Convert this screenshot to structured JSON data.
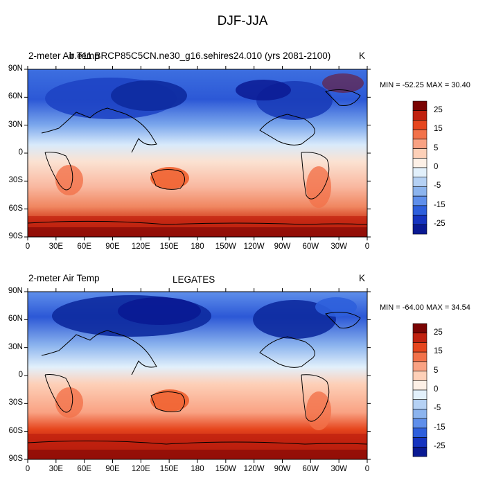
{
  "title": "DJF-JJA",
  "panels": [
    {
      "left_label": "2-meter Air Temp",
      "center_label": "b.e11.BRCP85C5CN.ne30_g16.sehires24.010 (yrs 2081-2100)",
      "unit": "K",
      "minmax": "MIN = -52.25 MAX =  30.40"
    },
    {
      "left_label": "2-meter Air Temp",
      "center_label": "LEGATES",
      "unit": "K",
      "minmax": "MIN = -64.00 MAX =  34.54"
    }
  ],
  "lat_ticks": [
    "90N",
    "60N",
    "30N",
    "0",
    "30S",
    "60S",
    "90S"
  ],
  "lon_ticks": [
    "0",
    "30E",
    "60E",
    "90E",
    "120E",
    "150E",
    "180",
    "150W",
    "120W",
    "90W",
    "60W",
    "30W",
    "0"
  ],
  "colorbar": {
    "labels": [
      "25",
      "15",
      "5",
      "0",
      "-5",
      "-15",
      "-25"
    ],
    "colors": [
      "#7a0403",
      "#c0210f",
      "#e6461e",
      "#f2724a",
      "#f9a283",
      "#fdd0b8",
      "#fdf0e6",
      "#e2f0fb",
      "#b5d1f4",
      "#8cb4ee",
      "#5f8feb",
      "#2e5fdc",
      "#1634bf",
      "#0a1a93"
    ]
  }
}
